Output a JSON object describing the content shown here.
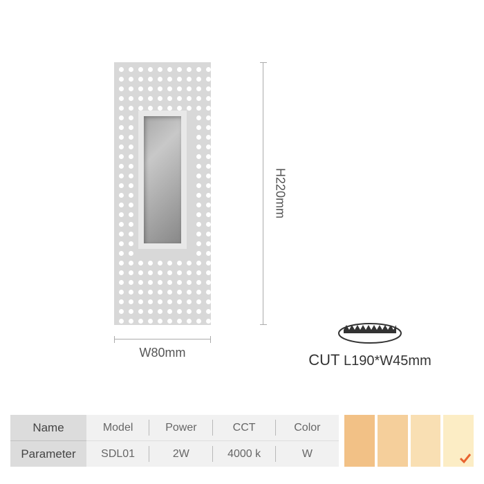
{
  "dimensions": {
    "width_label": "W80mm",
    "height_label": "H220mm"
  },
  "cut": {
    "prefix": "CUT",
    "value": "L190*W45mm",
    "prefix_fontsize": 22,
    "value_fontsize": 20
  },
  "spec_table": {
    "row_labels": [
      "Name",
      "Parameter"
    ],
    "headers": [
      "Model",
      "Power",
      "CCT",
      "Color"
    ],
    "values": [
      "SDL01",
      "2W",
      "4000 k",
      "W"
    ],
    "label_bg": "#dcdcdc",
    "cell_bg": "#f1f1f1",
    "divider_color": "#b8b8b8",
    "text_color": "#666666"
  },
  "swatches": {
    "colors": [
      "#f2c186",
      "#f5cf9b",
      "#f9dfb3",
      "#fcedc5"
    ],
    "selected_index": 3,
    "checkmark_color": "#e8632f"
  },
  "product_visual": {
    "plate_color": "#d8d8d8",
    "hole_color": "#ffffff",
    "hole_diameter": 7,
    "hole_spacing": 14,
    "recess_gradient": [
      "#a8a8a8",
      "#c8c8c8",
      "#888888"
    ],
    "recess_border": "#e8e8e8"
  },
  "cut_icon": {
    "ellipse_stroke": "#333333",
    "sawtooth_fill": "#333333"
  }
}
